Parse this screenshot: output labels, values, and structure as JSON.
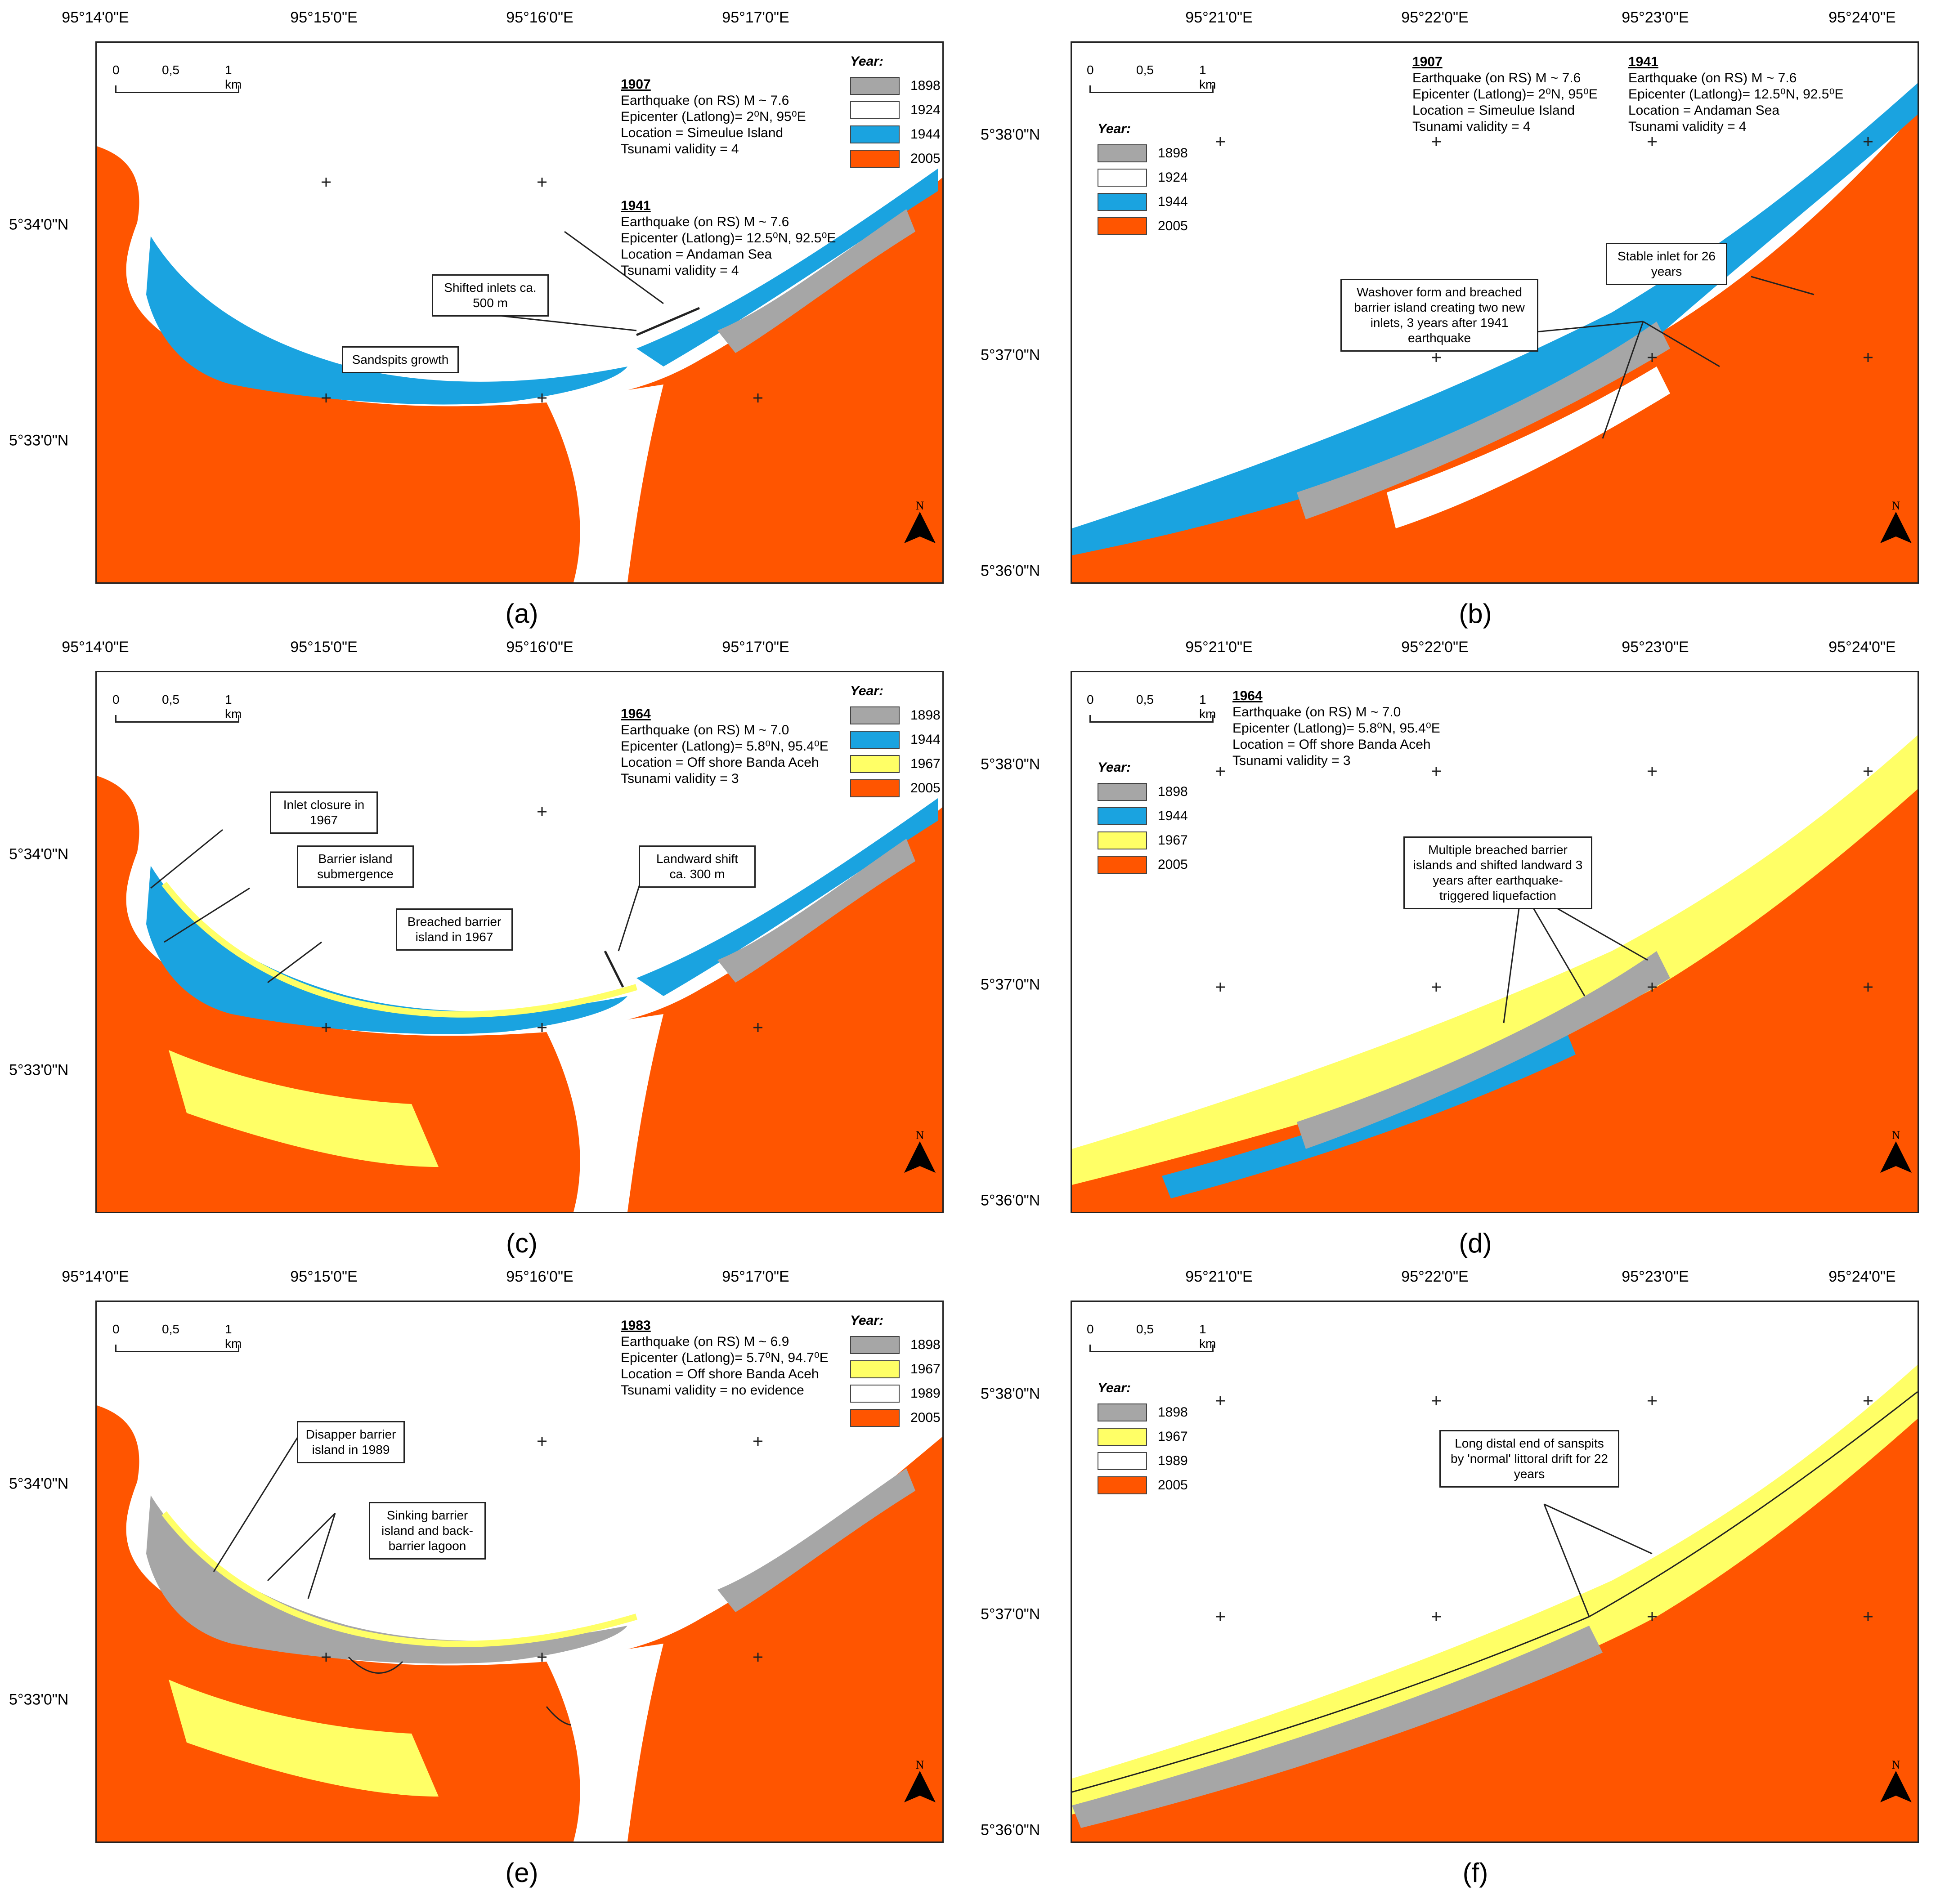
{
  "colors": {
    "y1898": "#a6a6a6",
    "y1924": "#ffffff",
    "y1944": "#1aa3e0",
    "y1967": "#ffff66",
    "y1989": "#ffffff",
    "y2005": "#ff5500",
    "sea": "#ffffff"
  },
  "legend_title": "Year:",
  "scale": {
    "zero": "0",
    "half": "0,5",
    "one": "1 km"
  },
  "north_label": "N",
  "left_axis": {
    "x_ticks": [
      "95°14'0\"E",
      "95°15'0\"E",
      "95°16'0\"E",
      "95°17'0\"E"
    ],
    "y_ticks": [
      "5°34'0\"N",
      "5°33'0\"N"
    ]
  },
  "right_axis": {
    "x_ticks": [
      "95°21'0\"E",
      "95°22'0\"E",
      "95°23'0\"E",
      "95°24'0\"E"
    ],
    "y_ticks": [
      "5°38'0\"N",
      "5°37'0\"N",
      "5°36'0\"N"
    ]
  },
  "panels": {
    "a": {
      "caption": "(a)",
      "legend": [
        "1898",
        "1924",
        "1944",
        "2005"
      ],
      "quakes": [
        {
          "year": "1907",
          "lines": [
            "Earthquake (on RS) M ~ 7.6",
            "Epicenter (Latlong)= 2⁰N, 95⁰E",
            "Location = Simeulue Island",
            "Tsunami validity = 4"
          ]
        },
        {
          "year": "1941",
          "lines": [
            "Earthquake (on RS) M ~ 7.6",
            "Epicenter (Latlong)= 12.5⁰N, 92.5⁰E",
            "Location = Andaman Sea",
            "Tsunami validity = 4"
          ]
        }
      ],
      "notes": [
        "Shifted inlets ca. 500 m",
        "Sandspits growth"
      ]
    },
    "b": {
      "caption": "(b)",
      "legend": [
        "1898",
        "1924",
        "1944",
        "2005"
      ],
      "quakes": [
        {
          "year": "1907",
          "lines": [
            "Earthquake (on RS) M ~ 7.6",
            "Epicenter (Latlong)= 2⁰N, 95⁰E",
            "Location = Simeulue Island",
            "Tsunami validity = 4"
          ]
        },
        {
          "year": "1941",
          "lines": [
            "Earthquake (on RS) M ~ 7.6",
            "Epicenter (Latlong)= 12.5⁰N, 92.5⁰E",
            "Location = Andaman Sea",
            "Tsunami validity = 4"
          ]
        }
      ],
      "notes": [
        "Stable inlet for 26 years",
        "Washover form and breached barrier island creating two new inlets, 3 years after 1941 earthquake"
      ]
    },
    "c": {
      "caption": "(c)",
      "legend": [
        "1898",
        "1944",
        "1967",
        "2005"
      ],
      "quakes": [
        {
          "year": "1964",
          "lines": [
            "Earthquake (on RS) M ~ 7.0",
            "Epicenter (Latlong)= 5.8⁰N, 95.4⁰E",
            "Location = Off shore Banda Aceh",
            "Tsunami validity = 3"
          ]
        }
      ],
      "notes": [
        "Inlet closure in 1967",
        "Barrier island submergence",
        "Breached barrier island in 1967",
        "Landward shift ca. 300 m"
      ]
    },
    "d": {
      "caption": "(d)",
      "legend": [
        "1898",
        "1944",
        "1967",
        "2005"
      ],
      "quakes": [
        {
          "year": "1964",
          "lines": [
            "Earthquake (on RS) M ~ 7.0",
            "Epicenter (Latlong)= 5.8⁰N, 95.4⁰E",
            "Location = Off shore Banda Aceh",
            "Tsunami validity = 3"
          ]
        }
      ],
      "notes": [
        "Multiple breached barrier islands and shifted landward 3 years after earthquake-triggered liquefaction"
      ]
    },
    "e": {
      "caption": "(e)",
      "legend": [
        "1898",
        "1967",
        "1989",
        "2005"
      ],
      "quakes": [
        {
          "year": "1983",
          "lines": [
            "Earthquake (on RS) M ~ 6.9",
            "Epicenter (Latlong)= 5.7⁰N, 94.7⁰E",
            "Location = Off shore Banda Aceh",
            "Tsunami validity = no evidence"
          ]
        }
      ],
      "notes": [
        "Disapper barrier island in 1989",
        "Sinking barrier island and back-barrier lagoon"
      ]
    },
    "f": {
      "caption": "(f)",
      "legend": [
        "1898",
        "1967",
        "1989",
        "2005"
      ],
      "quakes": [],
      "notes": [
        "Long distal end of sanspits by 'normal' littoral drift for 22 years"
      ]
    }
  }
}
